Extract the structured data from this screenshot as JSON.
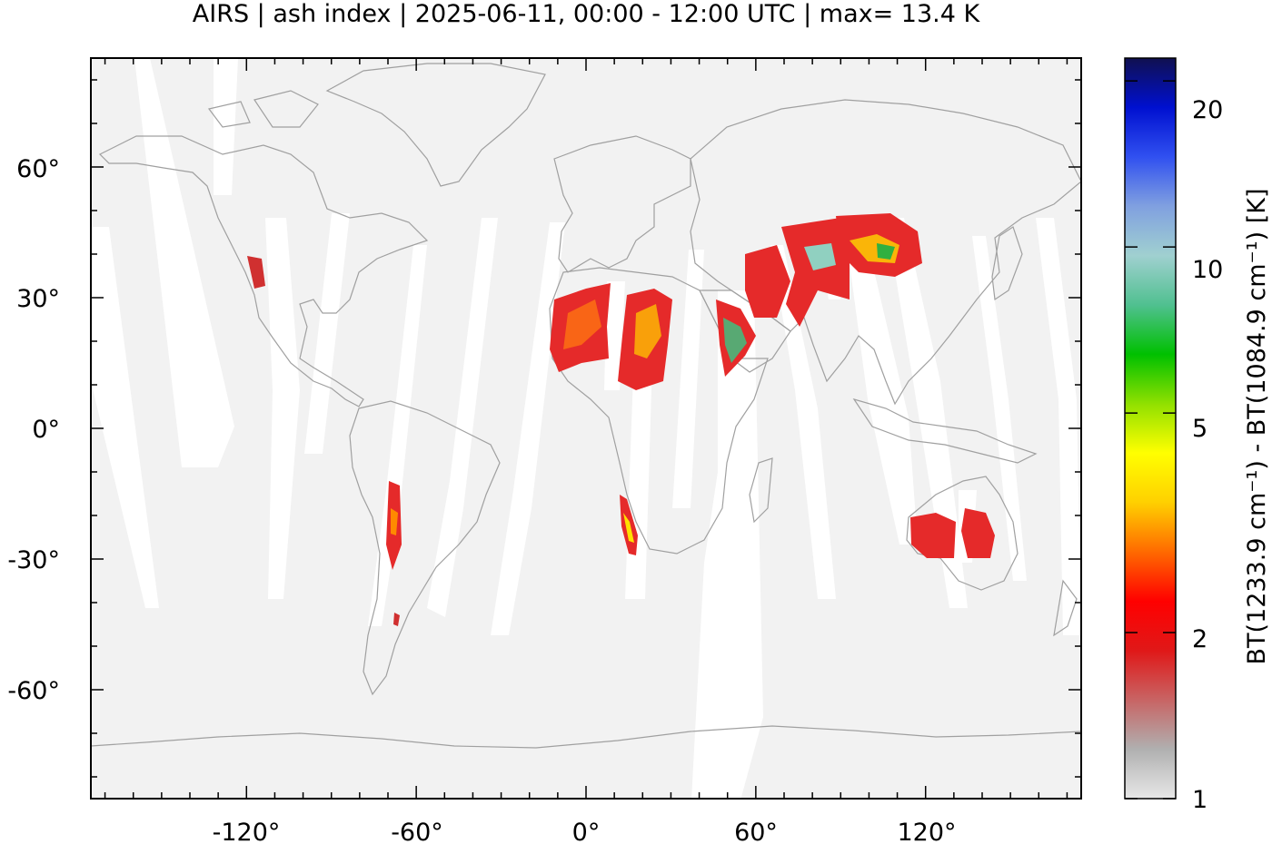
{
  "title": "AIRS | ash index | 2025-06-11, 00:00 - 12:00 UTC | max= 13.4 K",
  "map": {
    "lon_ticks": [
      "-120°",
      "-60°",
      "0°",
      "60°",
      "120°"
    ],
    "lat_ticks": [
      "60°",
      "30°",
      "0°",
      "-30°",
      "-60°"
    ],
    "lon_values": [
      -120,
      -60,
      0,
      60,
      120
    ],
    "lat_values": [
      60,
      30,
      0,
      -30,
      -60
    ],
    "lon_range": [
      -175,
      175
    ],
    "lat_range": [
      -85,
      85
    ],
    "background_color": "#f2f2f2",
    "coastline_color": "#a0a0a0"
  },
  "colorbar": {
    "ticks": [
      "1",
      "2",
      "5",
      "10",
      "20"
    ],
    "tick_values": [
      1,
      2,
      5,
      10,
      20
    ],
    "range": [
      1,
      22
    ],
    "scale": "log",
    "label": "BT(1233.9 cm⁻¹) - BT(1084.9 cm⁻¹) [K]",
    "colors": [
      "#e8e8e8",
      "#b0b0b0",
      "#c86464",
      "#e01818",
      "#ff0000",
      "#ff6a00",
      "#ffd000",
      "#ffff00",
      "#90e000",
      "#00c000",
      "#50c090",
      "#a0d0d0",
      "#80a0e0",
      "#3050f0",
      "#0010d0",
      "#101050"
    ]
  }
}
